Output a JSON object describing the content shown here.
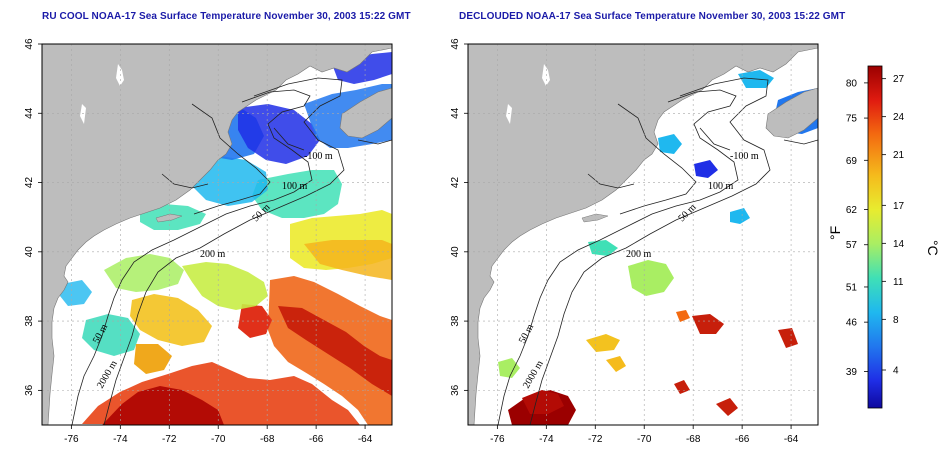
{
  "panels": [
    {
      "title": "RU COOL NOAA-17 Sea Surface Temperature November 30, 2003 15:22 GMT",
      "contours": [
        "-100 m",
        "100 m",
        "50 m",
        "200 m",
        "50 m",
        "2000 m"
      ]
    },
    {
      "title": "DECLOUDED NOAA-17 Sea Surface Temperature November 30, 2003 15:22 GMT",
      "contours": [
        "-100 m",
        "100 m",
        "50 m",
        "200 m",
        "50 m",
        "2000 m"
      ]
    }
  ],
  "axes": {
    "x_ticks": [
      "-76",
      "-74",
      "-72",
      "-70",
      "-68",
      "-66",
      "-64"
    ],
    "y_ticks": [
      "46",
      "44",
      "42",
      "40",
      "38",
      "36"
    ],
    "x_values": [
      -76,
      -74,
      -72,
      -70,
      -68,
      -66,
      -64
    ],
    "y_values": [
      46,
      44,
      42,
      40,
      38,
      36
    ],
    "lon_range": [
      -77.2,
      -62.9
    ],
    "lat_range": [
      35.0,
      46.0
    ]
  },
  "colorbar": {
    "fahrenheit_label": "°F",
    "celsius_label": "°C",
    "fahrenheit_ticks": [
      "80",
      "75",
      "69",
      "62",
      "57",
      "51",
      "46",
      "39"
    ],
    "celsius_ticks": [
      "27",
      "24",
      "21",
      "17",
      "14",
      "11",
      "8",
      "4"
    ],
    "colors": [
      "#9b0000",
      "#e01b10",
      "#f36a10",
      "#f5bb1c",
      "#e8ec2f",
      "#a9ee63",
      "#3fe0b6",
      "#1fb8ef",
      "#2177ee",
      "#1f2ee6",
      "#0f089e"
    ]
  },
  "colors": {
    "land": "#bdbdbd",
    "ocean_background": "#ffffff",
    "frame": "#000000",
    "contour_line": "#222222",
    "grid": "#a8a8a8",
    "title": "#1a1aa8"
  }
}
